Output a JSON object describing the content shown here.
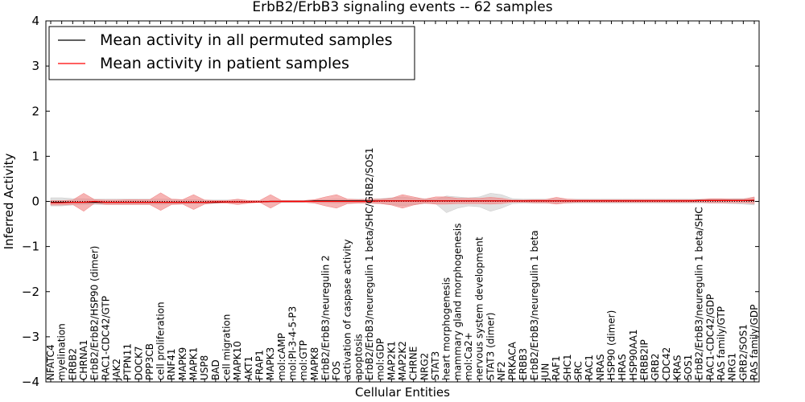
{
  "chart_data": {
    "type": "line",
    "title": "ErbB2/ErbB3 signaling events -- 62 samples",
    "xlabel": "Cellular Entities",
    "ylabel": "Inferred Activity",
    "ylim": [
      -4,
      4
    ],
    "yticks": [
      "4",
      "3",
      "2",
      "1",
      "0",
      "−1",
      "−2",
      "−3",
      "−4"
    ],
    "ytick_values": [
      4,
      3,
      2,
      1,
      0,
      -1,
      -2,
      -3,
      -4
    ],
    "legend_position": "top-left",
    "categories": [
      "NFATC4",
      "myelination",
      "ERBB2",
      "CHRNA1",
      "ErbB2/ErbB2/HSP90 (dimer)",
      "RAC1-CDC42/GTP",
      "JAK2",
      "PTPN11",
      "DOCK7",
      "PPP3CB",
      "cell proliferation",
      "RNF41",
      "MAPK9",
      "MAPK1",
      "USP8",
      "BAD",
      "cell migration",
      "MAPK10",
      "AKT1",
      "FRAP1",
      "MAPK3",
      "mol:cAMP",
      "mol:PI-3-4-5-P3",
      "mol:GTP",
      "MAPK8",
      "ErbB2/ErbB3/neuregulin 2",
      "FOS",
      "activation of caspase activity",
      "apoptosis",
      "ErbB2/ErbB3/neuregulin 1 beta/SHC/GRB2/SOS1",
      "mol:GDP",
      "MAP2K1",
      "MAP2K2",
      "CHRNE",
      "NRG2",
      "STAT3",
      "heart morphogenesis",
      "mammary gland morphogenesis",
      "mol:Ca2+",
      "nervous system development",
      "STAT3 (dimer)",
      "NF2",
      "PRKACA",
      "ERBB3",
      "ErbB2/ErbB3/neuregulin 1 beta",
      "JUN",
      "RAF1",
      "SHC1",
      "SRC",
      "RAC1",
      "NRAS",
      "HSP90 (dimer)",
      "HRAS",
      "HSP90AA1",
      "ERBB2IP",
      "GRB2",
      "CDC42",
      "KRAS",
      "SOS1",
      "ErbB2/ErbB3/neuregulin 1 beta/SHC",
      "RAC1-CDC42/GDP",
      "RAS family/GTP",
      "NRG1",
      "GRB2/SOS1",
      "RAS family/GDP"
    ],
    "series": [
      {
        "name": "Mean activity in all permuted samples",
        "color": "#000000",
        "values": [
          -0.02,
          -0.02,
          -0.02,
          -0.02,
          -0.02,
          -0.02,
          -0.02,
          -0.02,
          -0.02,
          -0.02,
          -0.02,
          -0.02,
          -0.02,
          -0.02,
          -0.02,
          -0.02,
          -0.01,
          -0.01,
          -0.01,
          -0.01,
          0,
          0,
          0,
          0,
          0.01,
          0.01,
          0.01,
          0.01,
          0.01,
          0.01,
          0.01,
          0.01,
          0.01,
          0.01,
          0.01,
          0.01,
          0.01,
          0.01,
          0.01,
          0.01,
          0.01,
          0.01,
          0.01,
          0.01,
          0.01,
          0.01,
          0.01,
          0.01,
          0.01,
          0.01,
          0.01,
          0.01,
          0.01,
          0.01,
          0.01,
          0.01,
          0.01,
          0.01,
          0.01,
          0.02,
          0.02,
          0.02,
          0.02,
          0.02,
          0.02
        ],
        "band_upper": [
          0.08,
          0.08,
          0.06,
          0.06,
          0.05,
          0.05,
          0.05,
          0.05,
          0.05,
          0.05,
          0.05,
          0.05,
          0.04,
          0.04,
          0.03,
          0.03,
          0.03,
          0.03,
          0.02,
          0.02,
          0.02,
          0.02,
          0.02,
          0.02,
          0.03,
          0.04,
          0.05,
          0.05,
          0.05,
          0.05,
          0.06,
          0.08,
          0.1,
          0.07,
          0.06,
          0.05,
          0.12,
          0.1,
          0.08,
          0.1,
          0.18,
          0.15,
          0.06,
          0.05,
          0.05,
          0.05,
          0.05,
          0.05,
          0.05,
          0.05,
          0.05,
          0.05,
          0.05,
          0.05,
          0.05,
          0.05,
          0.05,
          0.05,
          0.05,
          0.05,
          0.05,
          0.05,
          0.06,
          0.06,
          0.08
        ],
        "band_lower": [
          -0.1,
          -0.1,
          -0.08,
          -0.07,
          -0.07,
          -0.07,
          -0.07,
          -0.07,
          -0.07,
          -0.07,
          -0.07,
          -0.06,
          -0.06,
          -0.05,
          -0.05,
          -0.04,
          -0.04,
          -0.04,
          -0.03,
          -0.02,
          -0.02,
          -0.02,
          -0.02,
          -0.02,
          -0.03,
          -0.03,
          -0.04,
          -0.04,
          -0.04,
          -0.04,
          -0.05,
          -0.07,
          -0.1,
          -0.07,
          -0.05,
          -0.05,
          -0.25,
          -0.15,
          -0.1,
          -0.12,
          -0.22,
          -0.15,
          -0.05,
          -0.04,
          -0.04,
          -0.04,
          -0.04,
          -0.04,
          -0.04,
          -0.04,
          -0.04,
          -0.04,
          -0.04,
          -0.04,
          -0.04,
          -0.04,
          -0.04,
          -0.04,
          -0.04,
          -0.04,
          -0.04,
          -0.04,
          -0.05,
          -0.06,
          -0.08
        ]
      },
      {
        "name": "Mean activity in patient samples",
        "color": "#ff0000",
        "values": [
          -0.03,
          -0.03,
          -0.02,
          -0.02,
          0.0,
          -0.02,
          -0.02,
          -0.02,
          -0.02,
          -0.02,
          -0.02,
          -0.02,
          -0.02,
          -0.02,
          -0.02,
          -0.01,
          -0.01,
          -0.01,
          -0.01,
          -0.01,
          0.0,
          0.0,
          0.0,
          0.0,
          0.0,
          0.0,
          0.0,
          0.0,
          0.0,
          0.0,
          0.01,
          0.01,
          0.01,
          0.01,
          0.01,
          0.01,
          0.01,
          0.01,
          0.01,
          0.01,
          0.01,
          0.01,
          0.01,
          0.01,
          0.01,
          0.01,
          0.01,
          0.01,
          0.01,
          0.01,
          0.01,
          0.01,
          0.01,
          0.01,
          0.01,
          0.01,
          0.01,
          0.01,
          0.01,
          0.02,
          0.02,
          0.02,
          0.02,
          0.02,
          0.03
        ],
        "band_upper": [
          0.02,
          0.02,
          0.03,
          0.18,
          0.04,
          0.03,
          0.03,
          0.04,
          0.04,
          0.04,
          0.19,
          0.05,
          0.04,
          0.15,
          0.03,
          0.02,
          0.02,
          0.05,
          0.02,
          0.02,
          0.15,
          0.02,
          0.02,
          0.02,
          0.04,
          0.1,
          0.15,
          0.05,
          0.04,
          0.05,
          0.05,
          0.07,
          0.15,
          0.1,
          0.05,
          0.1,
          0.1,
          0.07,
          0.07,
          0.07,
          0.09,
          0.07,
          0.03,
          0.03,
          0.04,
          0.04,
          0.09,
          0.05,
          0.04,
          0.04,
          0.04,
          0.04,
          0.04,
          0.04,
          0.04,
          0.04,
          0.04,
          0.04,
          0.04,
          0.04,
          0.06,
          0.06,
          0.05,
          0.05,
          0.1
        ],
        "band_lower": [
          -0.08,
          -0.08,
          -0.07,
          -0.22,
          -0.04,
          -0.07,
          -0.07,
          -0.07,
          -0.07,
          -0.07,
          -0.2,
          -0.07,
          -0.06,
          -0.18,
          -0.06,
          -0.04,
          -0.04,
          -0.07,
          -0.04,
          -0.02,
          -0.15,
          -0.02,
          -0.02,
          -0.02,
          -0.04,
          -0.1,
          -0.15,
          -0.05,
          -0.04,
          -0.04,
          -0.05,
          -0.08,
          -0.15,
          -0.08,
          -0.04,
          -0.06,
          -0.06,
          -0.05,
          -0.05,
          -0.05,
          -0.06,
          -0.05,
          -0.02,
          -0.02,
          -0.03,
          -0.03,
          -0.06,
          -0.03,
          -0.02,
          -0.02,
          -0.02,
          -0.02,
          -0.02,
          -0.02,
          -0.02,
          -0.02,
          -0.02,
          -0.02,
          -0.02,
          -0.02,
          -0.03,
          -0.03,
          -0.03,
          -0.03,
          -0.05
        ]
      }
    ],
    "colors": {
      "permuted_band": "#c8c8c8",
      "patient_band": "#f08080",
      "zero_line": "#000000"
    }
  }
}
